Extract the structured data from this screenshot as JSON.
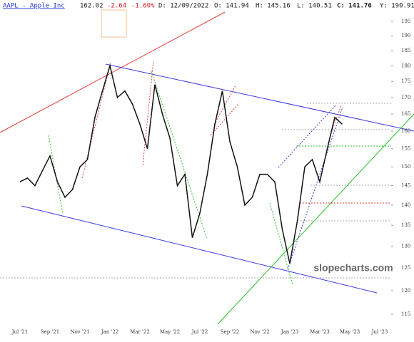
{
  "header": {
    "symbol": "AAPL - Apple Inc",
    "last": "162.02",
    "change": "-2.64",
    "change_pct": "-1.60%",
    "date": "D: 12/09/2022",
    "open": "O: 141.94",
    "high": "H: 145.16",
    "low": "L: 140.51",
    "close": "C: 141.76",
    "y": "Y: 190.91"
  },
  "watermark": "slopecharts.com",
  "chart_data": {
    "type": "line",
    "color": "#111111",
    "log_scale": true,
    "categories": [
      "Jul '21",
      null,
      null,
      null,
      "Sep '21",
      null,
      null,
      null,
      "Nov '21",
      null,
      null,
      null,
      "Jan '22",
      null,
      null,
      null,
      "Mar '22",
      null,
      null,
      null,
      "May '22",
      null,
      null,
      null,
      "Jul '22",
      null,
      null,
      null,
      "Sep '22",
      null,
      null,
      null,
      "Nov '22",
      null,
      null,
      null,
      "Jan '23",
      null,
      null,
      null,
      "Mar '23",
      null,
      null,
      null,
      "May '23",
      null,
      null,
      null,
      "Jul '23"
    ],
    "values": [
      146,
      147,
      145,
      149,
      153,
      146,
      142,
      144,
      150,
      152,
      164,
      172,
      180,
      170,
      172,
      168,
      162,
      155,
      174,
      165,
      158,
      145,
      148,
      132,
      138,
      148,
      162,
      172,
      157,
      150,
      140,
      142,
      148,
      148,
      146,
      134,
      126,
      136,
      150,
      152,
      146,
      155,
      164,
      162,
      null,
      null,
      null,
      null,
      null
    ],
    "ylim": [
      115,
      195
    ],
    "yticks": [
      115,
      120,
      125,
      130,
      135,
      140,
      145,
      150,
      155,
      160,
      165,
      170,
      175,
      180,
      185,
      190,
      195
    ]
  }
}
